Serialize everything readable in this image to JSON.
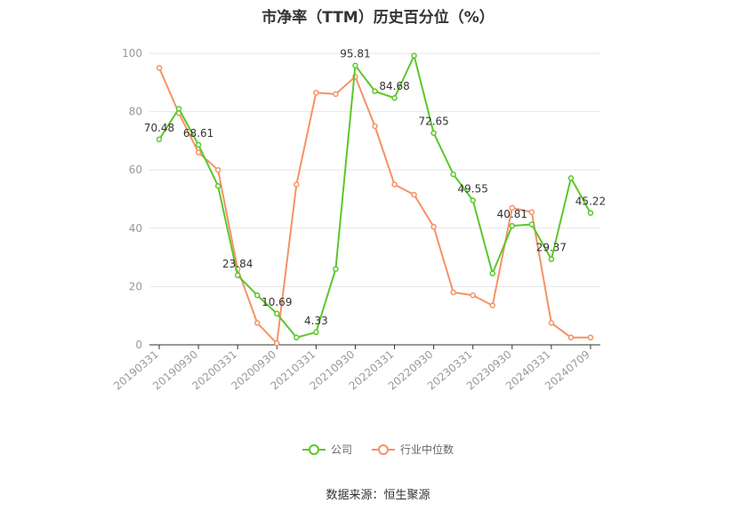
{
  "chart_data": {
    "type": "line",
    "title": "市净率（TTM）历史百分位（%）",
    "source": "数据来源：恒生聚源",
    "ylim": [
      0,
      100
    ],
    "yticks": [
      0,
      20,
      40,
      60,
      80,
      100
    ],
    "grid": true,
    "legend_position": "bottom-center",
    "x": [
      "20190331",
      "20190630",
      "20190930",
      "20191231",
      "20200331",
      "20200630",
      "20200930",
      "20201231",
      "20210331",
      "20210630",
      "20210930",
      "20211231",
      "20220331",
      "20220630",
      "20220930",
      "20221231",
      "20230331",
      "20230630",
      "20230930",
      "20231231",
      "20240331",
      "20240630",
      "20240709"
    ],
    "x_tick_labels": [
      "20190331",
      "20190930",
      "20200331",
      "20200930",
      "20210331",
      "20210930",
      "20220331",
      "20220930",
      "20230331",
      "20230930",
      "20240331",
      "20240709"
    ],
    "series": [
      {
        "name": "公司",
        "color": "#5cc72b",
        "values": [
          70.48,
          81.0,
          68.61,
          54.5,
          23.84,
          17.0,
          10.69,
          2.5,
          4.33,
          26.0,
          95.81,
          87.0,
          84.68,
          99.2,
          72.65,
          58.5,
          49.55,
          24.5,
          40.81,
          41.3,
          29.37,
          57.2,
          45.22
        ],
        "labels": [
          "70.48",
          "",
          "68.61",
          "",
          "23.84",
          "",
          "10.69",
          "",
          "4.33",
          "",
          "95.81",
          "",
          "84.68",
          "",
          "72.65",
          "",
          "49.55",
          "",
          "40.81",
          "",
          "29.37",
          "",
          "45.22"
        ]
      },
      {
        "name": "行业中位数",
        "color": "#f59266",
        "values": [
          95.0,
          79.5,
          66.0,
          60.0,
          26.0,
          7.5,
          0.5,
          55.0,
          86.5,
          86.0,
          92.0,
          75.0,
          55.0,
          51.5,
          40.5,
          18.0,
          17.0,
          13.5,
          47.0,
          45.5,
          7.5,
          2.5,
          2.5
        ]
      }
    ]
  },
  "legend": {
    "items": [
      {
        "label": "公司",
        "color": "#5cc72b"
      },
      {
        "label": "行业中位数",
        "color": "#f59266"
      }
    ]
  }
}
